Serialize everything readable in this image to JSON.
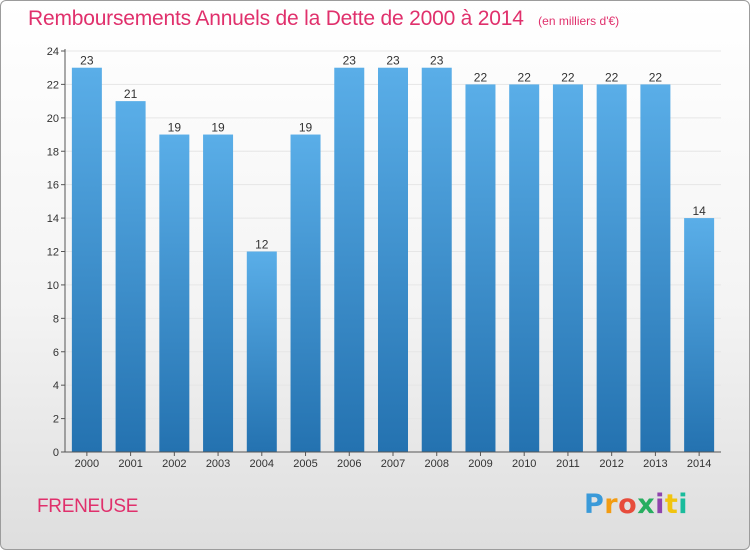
{
  "title": "Remboursements Annuels de la Dette de 2000 à 2014",
  "unit": "(en milliers d'€)",
  "commune": "FRENEUSE",
  "logo": {
    "letters": [
      "P",
      "r",
      "o",
      "x",
      "i",
      "t",
      "i"
    ],
    "colors": [
      "#3a9ad9",
      "#f39c12",
      "#e74c3c",
      "#27ae60",
      "#8e44ad",
      "#f1c40f",
      "#1abc9c"
    ]
  },
  "colors": {
    "title": "#e0306c",
    "bar_light": "#5aaee8",
    "bar_dark": "#2472b0",
    "grid": "#e6e6e6",
    "axis": "#555555"
  },
  "chart_data": {
    "type": "bar",
    "categories": [
      "2000",
      "2001",
      "2002",
      "2003",
      "2004",
      "2005",
      "2006",
      "2007",
      "2008",
      "2009",
      "2010",
      "2011",
      "2012",
      "2013",
      "2014"
    ],
    "values": [
      23,
      21,
      19,
      19,
      12,
      19,
      23,
      23,
      23,
      22,
      22,
      22,
      22,
      22,
      14
    ],
    "ylim": [
      0,
      24
    ],
    "yticks": [
      0,
      2,
      4,
      6,
      8,
      10,
      12,
      14,
      16,
      18,
      20,
      22,
      24
    ],
    "grid": true,
    "show_value_labels": true
  }
}
